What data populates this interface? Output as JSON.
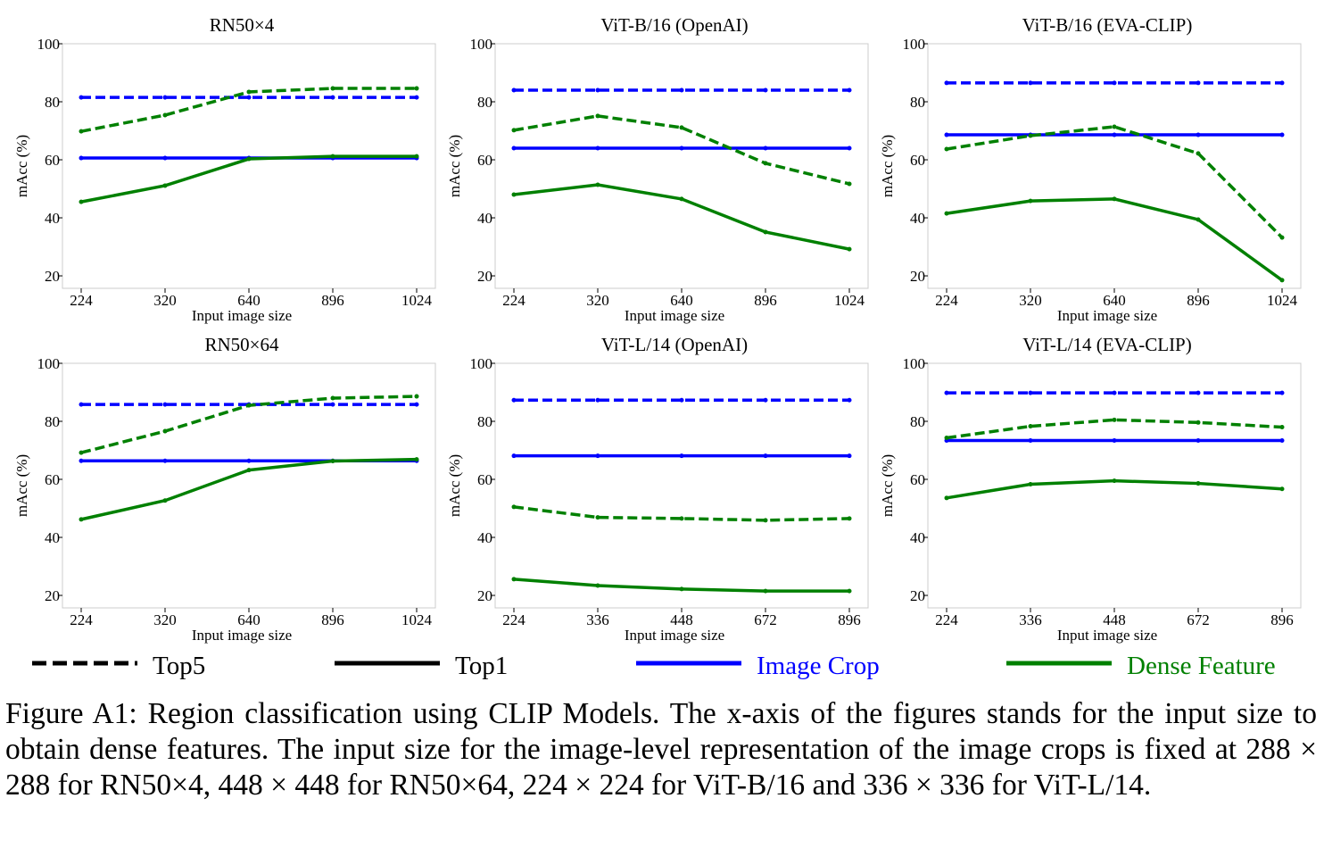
{
  "chart_data": [
    {
      "type": "line",
      "title": "RN50×4",
      "xlabel": "Input image size",
      "ylabel": "mAcc (%)",
      "categories": [
        "224",
        "320",
        "640",
        "896",
        "1024"
      ],
      "ylim": [
        15.7,
        100
      ],
      "yticks": [
        20,
        40,
        60,
        80,
        100
      ],
      "grid": false,
      "series": [
        {
          "metric": "Top5",
          "method": "Image Crop",
          "values": [
            81.5,
            81.5,
            81.5,
            81.5,
            81.5
          ]
        },
        {
          "metric": "Top1",
          "method": "Image Crop",
          "values": [
            60.6,
            60.6,
            60.6,
            60.6,
            60.6
          ]
        },
        {
          "metric": "Top5",
          "method": "Dense Feature",
          "values": [
            69.8,
            75.4,
            83.4,
            84.6,
            84.6
          ]
        },
        {
          "metric": "Top1",
          "method": "Dense Feature",
          "values": [
            45.5,
            51.1,
            60.3,
            61.2,
            61.2
          ]
        }
      ]
    },
    {
      "type": "line",
      "title": "ViT-B/16 (OpenAI)",
      "xlabel": "Input image size",
      "ylabel": "mAcc (%)",
      "categories": [
        "224",
        "320",
        "640",
        "896",
        "1024"
      ],
      "ylim": [
        15.7,
        100
      ],
      "yticks": [
        20,
        40,
        60,
        80,
        100
      ],
      "grid": false,
      "series": [
        {
          "metric": "Top5",
          "method": "Image Crop",
          "values": [
            84,
            84,
            84,
            84,
            84
          ]
        },
        {
          "metric": "Top1",
          "method": "Image Crop",
          "values": [
            64,
            64,
            64,
            64,
            64
          ]
        },
        {
          "metric": "Top5",
          "method": "Dense Feature",
          "values": [
            70.2,
            75.1,
            71.1,
            58.8,
            51.7
          ]
        },
        {
          "metric": "Top1",
          "method": "Dense Feature",
          "values": [
            48,
            51.4,
            46.5,
            35.1,
            29.2
          ]
        }
      ]
    },
    {
      "type": "line",
      "title": "ViT-B/16 (EVA-CLIP)",
      "xlabel": "Input image size",
      "ylabel": "mAcc (%)",
      "categories": [
        "224",
        "320",
        "640",
        "896",
        "1024"
      ],
      "ylim": [
        15.7,
        100
      ],
      "yticks": [
        20,
        40,
        60,
        80,
        100
      ],
      "grid": false,
      "series": [
        {
          "metric": "Top5",
          "method": "Image Crop",
          "values": [
            86.5,
            86.5,
            86.5,
            86.5,
            86.5
          ]
        },
        {
          "metric": "Top1",
          "method": "Image Crop",
          "values": [
            68.6,
            68.6,
            68.6,
            68.6,
            68.6
          ]
        },
        {
          "metric": "Top5",
          "method": "Dense Feature",
          "values": [
            63.7,
            68.3,
            71.4,
            62.2,
            33.2
          ]
        },
        {
          "metric": "Top1",
          "method": "Dense Feature",
          "values": [
            41.5,
            45.8,
            46.5,
            39.4,
            18.5
          ]
        }
      ]
    },
    {
      "type": "line",
      "title": "RN50×64",
      "xlabel": "Input image size",
      "ylabel": "mAcc (%)",
      "categories": [
        "224",
        "320",
        "640",
        "896",
        "1024"
      ],
      "ylim": [
        15.7,
        100
      ],
      "yticks": [
        20,
        40,
        60,
        80,
        100
      ],
      "grid": false,
      "series": [
        {
          "metric": "Top5",
          "method": "Image Crop",
          "values": [
            85.8,
            85.8,
            85.8,
            85.8,
            85.8
          ]
        },
        {
          "metric": "Top1",
          "method": "Image Crop",
          "values": [
            66.4,
            66.4,
            66.4,
            66.4,
            66.4
          ]
        },
        {
          "metric": "Top5",
          "method": "Dense Feature",
          "values": [
            69.2,
            76.6,
            85.5,
            88,
            88.6
          ]
        },
        {
          "metric": "Top1",
          "method": "Dense Feature",
          "values": [
            46.2,
            52.7,
            63.2,
            66.3,
            66.9
          ]
        }
      ]
    },
    {
      "type": "line",
      "title": "ViT-L/14 (OpenAI)",
      "xlabel": "Input image size",
      "ylabel": "mAcc (%)",
      "categories": [
        "224",
        "336",
        "448",
        "672",
        "896"
      ],
      "ylim": [
        15.7,
        100
      ],
      "yticks": [
        20,
        40,
        60,
        80,
        100
      ],
      "grid": false,
      "series": [
        {
          "metric": "Top5",
          "method": "Image Crop",
          "values": [
            87.3,
            87.3,
            87.3,
            87.3,
            87.3
          ]
        },
        {
          "metric": "Top1",
          "method": "Image Crop",
          "values": [
            68.1,
            68.1,
            68.1,
            68.1,
            68.1
          ]
        },
        {
          "metric": "Top5",
          "method": "Dense Feature",
          "values": [
            50.5,
            46.9,
            46.5,
            45.9,
            46.5
          ]
        },
        {
          "metric": "Top1",
          "method": "Dense Feature",
          "values": [
            25.6,
            23.4,
            22.2,
            21.5,
            21.5
          ]
        }
      ]
    },
    {
      "type": "line",
      "title": "ViT-L/14 (EVA-CLIP)",
      "xlabel": "Input image size",
      "ylabel": "mAcc (%)",
      "categories": [
        "224",
        "336",
        "448",
        "672",
        "896"
      ],
      "ylim": [
        15.7,
        100
      ],
      "yticks": [
        20,
        40,
        60,
        80,
        100
      ],
      "grid": false,
      "series": [
        {
          "metric": "Top5",
          "method": "Image Crop",
          "values": [
            89.8,
            89.8,
            89.8,
            89.8,
            89.8
          ]
        },
        {
          "metric": "Top1",
          "method": "Image Crop",
          "values": [
            73.4,
            73.4,
            73.4,
            73.4,
            73.4
          ]
        },
        {
          "metric": "Top5",
          "method": "Dense Feature",
          "values": [
            74.3,
            78.3,
            80.5,
            79.6,
            78
          ]
        },
        {
          "metric": "Top1",
          "method": "Dense Feature",
          "values": [
            53.6,
            58.3,
            59.5,
            58.6,
            56.7
          ]
        }
      ]
    }
  ],
  "legend": {
    "placement": "bottom",
    "items": [
      {
        "label": "Top5",
        "style": "dashed",
        "color": "#000000"
      },
      {
        "label": "Top1",
        "style": "solid",
        "color": "#000000"
      },
      {
        "label": "Image Crop",
        "style": "solid",
        "color": "#0000ff"
      },
      {
        "label": "Dense Feature",
        "style": "solid",
        "color": "#008000"
      }
    ]
  },
  "colors": {
    "Image Crop": "#0000ff",
    "Dense Feature": "#008000"
  },
  "caption": "Figure A1: Region classification using CLIP Models. The x-axis of the figures stands for the input size to obtain dense features. The input size for the image-level representation of the image crops is fixed at 288 × 288 for RN50×4, 448 × 448 for RN50×64, 224 × 224 for ViT-B/16 and 336 × 336 for ViT-L/14."
}
